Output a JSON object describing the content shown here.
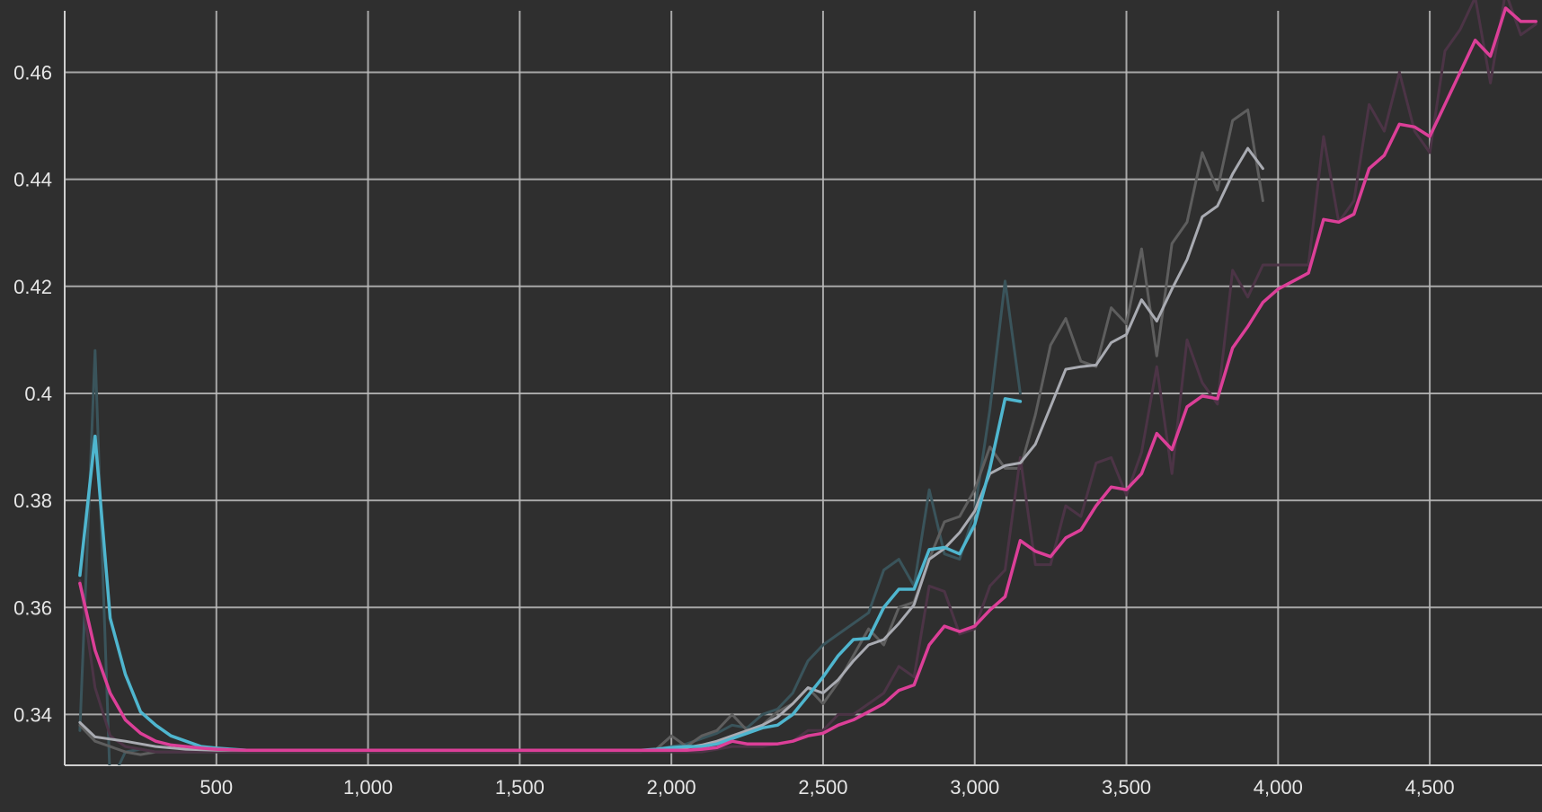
{
  "chart_data": {
    "type": "line",
    "title": "",
    "xlabel": "",
    "ylabel": "",
    "xlim": [
      0,
      4870
    ],
    "ylim": [
      0.3305,
      0.4715
    ],
    "grid": true,
    "legend": "none",
    "x_ticks": [
      {
        "value": 500,
        "label": "500"
      },
      {
        "value": 1000,
        "label": "1,000"
      },
      {
        "value": 1500,
        "label": "1,500"
      },
      {
        "value": 2000,
        "label": "2,000"
      },
      {
        "value": 2500,
        "label": "2,500"
      },
      {
        "value": 3000,
        "label": "3,000"
      },
      {
        "value": 3500,
        "label": "3,500"
      },
      {
        "value": 4000,
        "label": "4,000"
      },
      {
        "value": 4500,
        "label": "4,500"
      }
    ],
    "y_ticks": [
      {
        "value": 0.34,
        "label": "0.34"
      },
      {
        "value": 0.36,
        "label": "0.36"
      },
      {
        "value": 0.38,
        "label": "0.38"
      },
      {
        "value": 0.4,
        "label": "0.4"
      },
      {
        "value": 0.42,
        "label": "0.42"
      },
      {
        "value": 0.44,
        "label": "0.44"
      },
      {
        "value": 0.46,
        "label": "0.46"
      }
    ],
    "series": [
      {
        "color": "#3a545b",
        "width": 3,
        "x": [
          50,
          100,
          150,
          200,
          250,
          300,
          400,
          500,
          600,
          800,
          1000,
          1500,
          1900,
          1950,
          2000,
          2050,
          2100,
          2150,
          2200,
          2250,
          2300,
          2350,
          2400,
          2450,
          2500,
          2550,
          2600,
          2650,
          2700,
          2750,
          2800,
          2850,
          2900,
          2950,
          3000,
          3050,
          3100,
          3150
        ],
        "y": [
          0.337,
          0.408,
          0.327,
          0.333,
          0.3335,
          0.333,
          0.333,
          0.333,
          0.333,
          0.333,
          0.333,
          0.333,
          0.333,
          0.3335,
          0.334,
          0.3345,
          0.3355,
          0.3365,
          0.338,
          0.3375,
          0.34,
          0.341,
          0.344,
          0.35,
          0.353,
          0.355,
          0.357,
          0.359,
          0.367,
          0.369,
          0.364,
          0.382,
          0.37,
          0.369,
          0.378,
          0.397,
          0.421,
          0.4
        ]
      },
      {
        "color": "#5e5e5e",
        "width": 3,
        "x": [
          50,
          100,
          150,
          200,
          250,
          300,
          400,
          500,
          600,
          800,
          1000,
          1500,
          1900,
          1950,
          2000,
          2050,
          2100,
          2150,
          2200,
          2250,
          2300,
          2350,
          2400,
          2450,
          2500,
          2550,
          2600,
          2650,
          2700,
          2750,
          2800,
          2850,
          2900,
          2950,
          3000,
          3050,
          3100,
          3150,
          3200,
          3250,
          3300,
          3350,
          3400,
          3450,
          3500,
          3550,
          3600,
          3650,
          3700,
          3750,
          3800,
          3850,
          3900,
          3950
        ],
        "y": [
          0.338,
          0.335,
          0.334,
          0.333,
          0.3325,
          0.333,
          0.333,
          0.333,
          0.333,
          0.333,
          0.333,
          0.333,
          0.333,
          0.3335,
          0.336,
          0.334,
          0.336,
          0.337,
          0.34,
          0.337,
          0.338,
          0.3405,
          0.342,
          0.345,
          0.342,
          0.346,
          0.351,
          0.356,
          0.353,
          0.36,
          0.361,
          0.369,
          0.376,
          0.377,
          0.382,
          0.39,
          0.386,
          0.386,
          0.396,
          0.409,
          0.414,
          0.406,
          0.405,
          0.416,
          0.413,
          0.427,
          0.407,
          0.428,
          0.432,
          0.445,
          0.438,
          0.451,
          0.453,
          0.436
        ]
      },
      {
        "color": "#4c3446",
        "width": 3,
        "x": [
          50,
          100,
          150,
          200,
          250,
          300,
          400,
          500,
          600,
          800,
          1000,
          1500,
          1900,
          1950,
          2000,
          2050,
          2100,
          2150,
          2200,
          2250,
          2300,
          2350,
          2400,
          2450,
          2500,
          2550,
          2600,
          2650,
          2700,
          2750,
          2800,
          2850,
          2900,
          2950,
          3000,
          3050,
          3100,
          3150,
          3200,
          3250,
          3300,
          3350,
          3400,
          3450,
          3500,
          3550,
          3600,
          3650,
          3700,
          3750,
          3800,
          3850,
          3900,
          3950,
          4000,
          4050,
          4100,
          4150,
          4200,
          4250,
          4300,
          4350,
          4400,
          4450,
          4500,
          4550,
          4600,
          4650,
          4700,
          4750,
          4800,
          4850
        ],
        "y": [
          0.365,
          0.345,
          0.336,
          0.334,
          0.3335,
          0.333,
          0.333,
          0.333,
          0.333,
          0.333,
          0.333,
          0.333,
          0.333,
          0.333,
          0.333,
          0.333,
          0.333,
          0.3335,
          0.334,
          0.334,
          0.334,
          0.3345,
          0.335,
          0.337,
          0.337,
          0.34,
          0.34,
          0.342,
          0.344,
          0.349,
          0.347,
          0.364,
          0.363,
          0.355,
          0.356,
          0.364,
          0.367,
          0.388,
          0.368,
          0.368,
          0.379,
          0.377,
          0.387,
          0.388,
          0.381,
          0.389,
          0.405,
          0.385,
          0.41,
          0.402,
          0.398,
          0.423,
          0.418,
          0.424,
          0.424,
          0.424,
          0.424,
          0.448,
          0.432,
          0.436,
          0.454,
          0.449,
          0.46,
          0.449,
          0.445,
          0.464,
          0.468,
          0.474,
          0.458,
          0.475,
          0.467,
          0.469
        ]
      },
      {
        "color": "#a9abb2",
        "width": 3,
        "x": [
          50,
          100,
          150,
          200,
          250,
          300,
          400,
          500,
          600,
          800,
          1000,
          1500,
          1900,
          1950,
          2000,
          2050,
          2100,
          2150,
          2200,
          2250,
          2300,
          2350,
          2400,
          2450,
          2500,
          2550,
          2600,
          2650,
          2700,
          2750,
          2800,
          2850,
          2900,
          2950,
          3000,
          3050,
          3100,
          3150,
          3200,
          3250,
          3300,
          3350,
          3400,
          3450,
          3500,
          3550,
          3600,
          3650,
          3700,
          3750,
          3800,
          3850,
          3900,
          3950
        ],
        "y": [
          0.3385,
          0.3358,
          0.3354,
          0.335,
          0.3345,
          0.334,
          0.3335,
          0.3333,
          0.3333,
          0.3333,
          0.3333,
          0.3333,
          0.3333,
          0.3333,
          0.3338,
          0.3338,
          0.3343,
          0.335,
          0.336,
          0.337,
          0.338,
          0.3395,
          0.342,
          0.345,
          0.344,
          0.3465,
          0.35,
          0.353,
          0.354,
          0.357,
          0.3605,
          0.369,
          0.371,
          0.374,
          0.378,
          0.385,
          0.3865,
          0.387,
          0.3905,
          0.3975,
          0.4045,
          0.405,
          0.4053,
          0.4095,
          0.411,
          0.4175,
          0.4135,
          0.4195,
          0.425,
          0.433,
          0.435,
          0.441,
          0.4458,
          0.442
        ]
      },
      {
        "color": "#4fb6cf",
        "width": 3.5,
        "x": [
          50,
          100,
          150,
          200,
          250,
          300,
          350,
          400,
          450,
          500,
          600,
          800,
          1000,
          1500,
          1900,
          1950,
          2000,
          2050,
          2100,
          2150,
          2200,
          2250,
          2300,
          2350,
          2400,
          2450,
          2500,
          2550,
          2600,
          2650,
          2700,
          2750,
          2800,
          2850,
          2900,
          2950,
          3000,
          3050,
          3100,
          3150
        ],
        "y": [
          0.366,
          0.392,
          0.358,
          0.3475,
          0.3405,
          0.338,
          0.336,
          0.335,
          0.334,
          0.3337,
          0.3333,
          0.3333,
          0.3333,
          0.3333,
          0.3333,
          0.3335,
          0.3338,
          0.334,
          0.334,
          0.3345,
          0.3355,
          0.3365,
          0.3375,
          0.338,
          0.34,
          0.3435,
          0.347,
          0.351,
          0.354,
          0.3542,
          0.36,
          0.3634,
          0.3634,
          0.3708,
          0.3712,
          0.37,
          0.3755,
          0.386,
          0.399,
          0.3985
        ]
      },
      {
        "color": "#dc3f98",
        "width": 3.5,
        "x": [
          50,
          100,
          150,
          200,
          250,
          300,
          350,
          400,
          450,
          500,
          600,
          800,
          1000,
          1500,
          1900,
          1950,
          2000,
          2050,
          2100,
          2150,
          2200,
          2250,
          2300,
          2350,
          2400,
          2450,
          2500,
          2550,
          2600,
          2650,
          2700,
          2750,
          2800,
          2850,
          2900,
          2950,
          3000,
          3050,
          3100,
          3150,
          3200,
          3250,
          3300,
          3350,
          3400,
          3450,
          3500,
          3550,
          3600,
          3650,
          3700,
          3750,
          3800,
          3850,
          3900,
          3950,
          4000,
          4050,
          4100,
          4150,
          4200,
          4250,
          4300,
          4350,
          4400,
          4450,
          4500,
          4550,
          4600,
          4650,
          4700,
          4750,
          4800,
          4850
        ],
        "y": [
          0.3645,
          0.352,
          0.344,
          0.339,
          0.3365,
          0.335,
          0.3343,
          0.334,
          0.3337,
          0.3335,
          0.3333,
          0.3333,
          0.3333,
          0.3333,
          0.3333,
          0.3333,
          0.3333,
          0.3333,
          0.3335,
          0.3338,
          0.335,
          0.3345,
          0.3345,
          0.3345,
          0.335,
          0.336,
          0.3365,
          0.338,
          0.339,
          0.3405,
          0.342,
          0.3445,
          0.3455,
          0.353,
          0.3565,
          0.3555,
          0.3565,
          0.3595,
          0.362,
          0.3725,
          0.3705,
          0.3695,
          0.373,
          0.3745,
          0.379,
          0.3825,
          0.382,
          0.385,
          0.3925,
          0.3895,
          0.3975,
          0.3995,
          0.399,
          0.4085,
          0.4125,
          0.417,
          0.4195,
          0.421,
          0.4225,
          0.4325,
          0.432,
          0.4335,
          0.442,
          0.4445,
          0.4503,
          0.4498,
          0.448,
          0.454,
          0.46,
          0.466,
          0.463,
          0.472,
          0.4695,
          0.4695
        ]
      }
    ]
  }
}
